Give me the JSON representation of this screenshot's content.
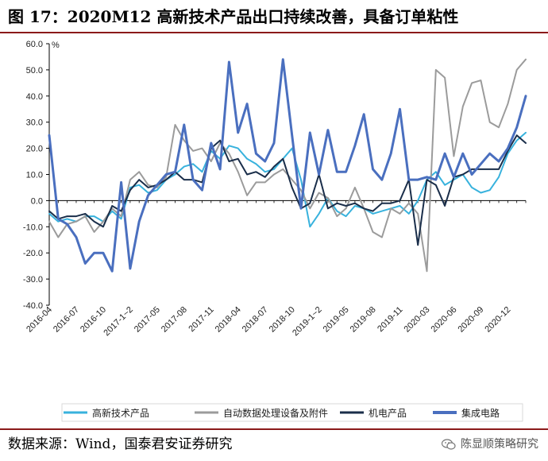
{
  "header": {
    "title": "图 17：2020M12 高新技术产品出口持续改善，具备订单粘性"
  },
  "footer": {
    "source": "数据来源：Wind，国泰君安证券研究",
    "watermark": "陈显顺策略研究",
    "watermark_icon": "wechat-icon"
  },
  "colors": {
    "rule": "#8b1a1a",
    "hightech": "#38b2dd",
    "adp": "#9b9b9b",
    "mech": "#1a2e4a",
    "ic": "#4a6fbf"
  },
  "chart_data": {
    "type": "line",
    "title": "2020M12 高新技术产品出口持续改善，具备订单粘性",
    "unit_label": "%",
    "ylim": [
      -40,
      60
    ],
    "y_ticks": [
      "60.0",
      "50.0",
      "40.0",
      "30.0",
      "20.0",
      "10.0",
      "0.0",
      "-10.0",
      "-20.0",
      "-30.0",
      "-40.0"
    ],
    "x_tick_labels": [
      "2016-04",
      "2016-07",
      "2016-10",
      "2017-1~2",
      "2017-05",
      "2017-08",
      "2017-11",
      "2018-04",
      "2018-07",
      "2018-10",
      "2019-1~2",
      "2019-05",
      "2019-08",
      "2019-11",
      "2020-03",
      "2020-06",
      "2020-09",
      "2020-12"
    ],
    "n_points": 54,
    "legend_position": "bottom",
    "series": [
      {
        "name": "高新技术产品",
        "color": "#38b2dd",
        "width": 2,
        "values": [
          -5,
          -8,
          -7,
          -8,
          -6,
          -6,
          -8,
          -4,
          -7,
          5,
          6,
          3,
          4,
          8,
          10,
          13,
          14,
          11,
          19,
          16,
          21,
          20,
          16,
          14,
          11,
          12,
          16,
          20,
          8,
          -10,
          -5,
          1,
          -4,
          -6,
          -2,
          -3,
          -5,
          -4,
          -3,
          -2,
          -5,
          0,
          8,
          11,
          6,
          8,
          10,
          5,
          3,
          4,
          9,
          18,
          23,
          26
        ]
      },
      {
        "name": "自动数据处理设备及附件",
        "color": "#9b9b9b",
        "width": 2,
        "values": [
          -8,
          -14,
          -9,
          -8,
          -6,
          -12,
          -8,
          -3,
          -6,
          8,
          11,
          6,
          5,
          9,
          29,
          23,
          19,
          20,
          15,
          22,
          18,
          11,
          2,
          7,
          7,
          10,
          12,
          8,
          4,
          -3,
          3,
          1,
          -6,
          -3,
          5,
          -3,
          -12,
          -14,
          -3,
          -5,
          -1,
          -5,
          -27,
          50,
          47,
          17,
          36,
          45,
          46,
          30,
          28,
          37,
          50,
          54
        ]
      },
      {
        "name": "机电产品",
        "color": "#1a2e4a",
        "width": 2,
        "values": [
          -4,
          -7,
          -6,
          -6,
          -5,
          -8,
          -10,
          -2,
          -4,
          4,
          8,
          5,
          6,
          8,
          11,
          8,
          8,
          7,
          20,
          23,
          15,
          16,
          10,
          11,
          9,
          13,
          16,
          5,
          -3,
          -1,
          10,
          -3,
          -1,
          -2,
          -1,
          -3,
          -4,
          -1,
          -1,
          0,
          8,
          -17,
          8,
          6,
          -2,
          9,
          10,
          12,
          12,
          12,
          12,
          19,
          25,
          22
        ]
      },
      {
        "name": "集成电路",
        "color": "#4a6fbf",
        "width": 3,
        "values": [
          25,
          -7,
          -9,
          -14,
          -24,
          -20,
          -20,
          -27,
          7,
          -26,
          -8,
          2,
          6,
          10,
          11,
          29,
          8,
          4,
          22,
          12,
          53,
          26,
          37,
          18,
          15,
          22,
          54,
          25,
          -3,
          26,
          10,
          27,
          11,
          11,
          21,
          33,
          12,
          8,
          18,
          35,
          8,
          8,
          9,
          8,
          18,
          9,
          18,
          10,
          14,
          18,
          15,
          20,
          28,
          40
        ]
      }
    ]
  }
}
